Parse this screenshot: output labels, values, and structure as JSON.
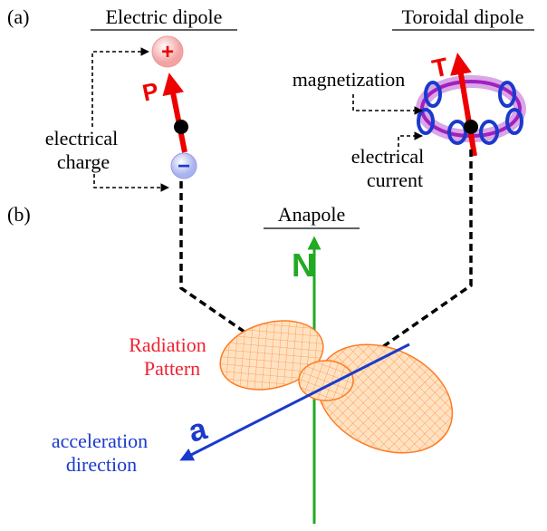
{
  "panel_a": {
    "label": "(a)",
    "electric_dipole": {
      "title": "Electric dipole",
      "vector": "P",
      "plus": "+",
      "minus": "−",
      "charge_label": [
        "electrical",
        "charge"
      ]
    },
    "toroidal_dipole": {
      "title": "Toroidal dipole",
      "vector": "T",
      "magnetization_label": "magnetization",
      "current_label": [
        "electrical",
        "current"
      ]
    }
  },
  "panel_b": {
    "label": "(b)",
    "title": "Anapole",
    "axis_label": "N",
    "pattern_label": [
      "Radiation",
      "Pattern"
    ],
    "acceleration_vector": "a",
    "acceleration_label": [
      "acceleration",
      "direction"
    ]
  }
}
